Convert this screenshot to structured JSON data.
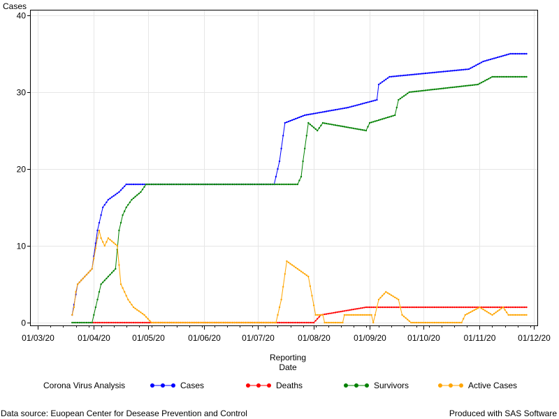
{
  "chart_data": {
    "type": "line",
    "title": "",
    "ylabel": "Cases",
    "xlabel_lines": [
      "Reporting",
      "Date"
    ],
    "ylim": [
      0,
      40
    ],
    "yticks": [
      0,
      10,
      20,
      30,
      40
    ],
    "xlim": [
      "2020-02-26",
      "2020-12-03"
    ],
    "xticks": [
      {
        "date": "2020-03-01",
        "label": "01/03/20"
      },
      {
        "date": "2020-04-01",
        "label": "01/04/20"
      },
      {
        "date": "2020-05-01",
        "label": "01/05/20"
      },
      {
        "date": "2020-06-01",
        "label": "01/06/20"
      },
      {
        "date": "2020-07-01",
        "label": "01/07/20"
      },
      {
        "date": "2020-08-01",
        "label": "01/08/20"
      },
      {
        "date": "2020-09-01",
        "label": "01/09/20"
      },
      {
        "date": "2020-10-01",
        "label": "01/10/20"
      },
      {
        "date": "2020-11-01",
        "label": "01/11/20"
      },
      {
        "date": "2020-12-01",
        "label": "01/12/20"
      }
    ],
    "grid": true,
    "legend_position": "bottom",
    "legend_title": "Corona Virus Analysis",
    "series": [
      {
        "name": "Cases",
        "color": "#0000ff",
        "points": [
          [
            "2020-03-20",
            1
          ],
          [
            "2020-03-23",
            5
          ],
          [
            "2020-03-31",
            7
          ],
          [
            "2020-04-03",
            12
          ],
          [
            "2020-04-05",
            14
          ],
          [
            "2020-04-06",
            15
          ],
          [
            "2020-04-09",
            16
          ],
          [
            "2020-04-15",
            17
          ],
          [
            "2020-04-19",
            18
          ],
          [
            "2020-07-10",
            18
          ],
          [
            "2020-07-11",
            19
          ],
          [
            "2020-07-13",
            21
          ],
          [
            "2020-07-16",
            26
          ],
          [
            "2020-07-27",
            27
          ],
          [
            "2020-08-20",
            28
          ],
          [
            "2020-09-05",
            29
          ],
          [
            "2020-09-06",
            31
          ],
          [
            "2020-09-12",
            32
          ],
          [
            "2020-10-26",
            33
          ],
          [
            "2020-11-03",
            34
          ],
          [
            "2020-11-18",
            35
          ],
          [
            "2020-11-27",
            35
          ]
        ]
      },
      {
        "name": "Deaths",
        "color": "#ff0000",
        "points": [
          [
            "2020-03-31",
            0
          ],
          [
            "2020-08-01",
            0
          ],
          [
            "2020-08-05",
            1
          ],
          [
            "2020-08-30",
            2
          ],
          [
            "2020-11-27",
            2
          ]
        ]
      },
      {
        "name": "Survivors",
        "color": "#008000",
        "points": [
          [
            "2020-03-20",
            0
          ],
          [
            "2020-03-31",
            0
          ],
          [
            "2020-04-01",
            1
          ],
          [
            "2020-04-02",
            2
          ],
          [
            "2020-04-03",
            3
          ],
          [
            "2020-04-04",
            4
          ],
          [
            "2020-04-05",
            5
          ],
          [
            "2020-04-13",
            7
          ],
          [
            "2020-04-15",
            12
          ],
          [
            "2020-04-17",
            14
          ],
          [
            "2020-04-19",
            15
          ],
          [
            "2020-04-22",
            16
          ],
          [
            "2020-04-27",
            17
          ],
          [
            "2020-04-30",
            18
          ],
          [
            "2020-07-23",
            18
          ],
          [
            "2020-07-25",
            19
          ],
          [
            "2020-07-26",
            21
          ],
          [
            "2020-07-29",
            26
          ],
          [
            "2020-08-03",
            25
          ],
          [
            "2020-08-06",
            26
          ],
          [
            "2020-08-30",
            25
          ],
          [
            "2020-09-01",
            26
          ],
          [
            "2020-09-15",
            27
          ],
          [
            "2020-09-17",
            29
          ],
          [
            "2020-09-23",
            30
          ],
          [
            "2020-10-31",
            31
          ],
          [
            "2020-11-08",
            32
          ],
          [
            "2020-11-27",
            32
          ]
        ]
      },
      {
        "name": "Active Cases",
        "color": "#ffa500",
        "points": [
          [
            "2020-03-20",
            1
          ],
          [
            "2020-03-21",
            2
          ],
          [
            "2020-03-22",
            4
          ],
          [
            "2020-03-23",
            5
          ],
          [
            "2020-03-31",
            7
          ],
          [
            "2020-04-03",
            11
          ],
          [
            "2020-04-04",
            12
          ],
          [
            "2020-04-05",
            11
          ],
          [
            "2020-04-07",
            10
          ],
          [
            "2020-04-09",
            11
          ],
          [
            "2020-04-14",
            10
          ],
          [
            "2020-04-16",
            5
          ],
          [
            "2020-04-18",
            4
          ],
          [
            "2020-04-20",
            3
          ],
          [
            "2020-04-23",
            2
          ],
          [
            "2020-04-29",
            1
          ],
          [
            "2020-05-03",
            0
          ],
          [
            "2020-07-11",
            0
          ],
          [
            "2020-07-12",
            1
          ],
          [
            "2020-07-14",
            3
          ],
          [
            "2020-07-17",
            8
          ],
          [
            "2020-07-29",
            6
          ],
          [
            "2020-08-02",
            1
          ],
          [
            "2020-08-06",
            1
          ],
          [
            "2020-08-07",
            0
          ],
          [
            "2020-08-17",
            0
          ],
          [
            "2020-08-18",
            1
          ],
          [
            "2020-09-02",
            1
          ],
          [
            "2020-09-03",
            0
          ],
          [
            "2020-09-04",
            1
          ],
          [
            "2020-09-06",
            3
          ],
          [
            "2020-09-10",
            4
          ],
          [
            "2020-09-17",
            3
          ],
          [
            "2020-09-19",
            1
          ],
          [
            "2020-09-24",
            0
          ],
          [
            "2020-10-22",
            0
          ],
          [
            "2020-10-24",
            1
          ],
          [
            "2020-11-01",
            2
          ],
          [
            "2020-11-08",
            1
          ],
          [
            "2020-11-14",
            2
          ],
          [
            "2020-11-17",
            1
          ],
          [
            "2020-11-27",
            1
          ]
        ]
      }
    ]
  },
  "footer": {
    "source": "Data source: Euopean Center for Desease Prevention and Control",
    "produced": "Produced with SAS Software"
  }
}
